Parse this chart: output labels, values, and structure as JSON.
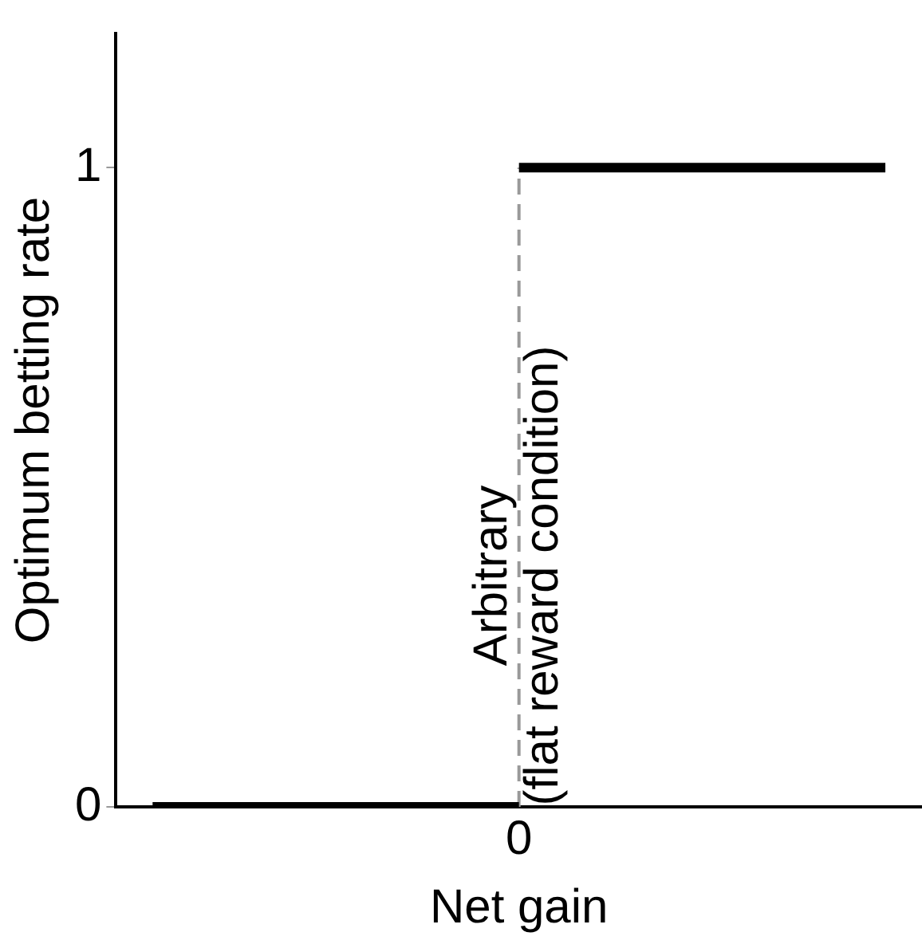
{
  "chart_data": {
    "type": "line",
    "xlabel": "Net gain",
    "ylabel": "Optimum betting rate",
    "categories": [
      null,
      null,
      null,
      null,
      null,
      "0",
      null,
      null,
      null,
      null,
      null
    ],
    "series": [
      {
        "color": "#000000",
        "values": [
          0,
          0,
          0,
          0,
          0,
          0,
          null,
          null,
          null,
          null,
          null
        ]
      },
      {
        "color": "#000000",
        "values": [
          null,
          null,
          null,
          null,
          null,
          1,
          1,
          1,
          1,
          1,
          1
        ]
      }
    ],
    "ylim": [
      0,
      1.21
    ],
    "yticks": [
      0,
      1
    ],
    "ref_lines": [
      {
        "axis": "x",
        "value": "0",
        "color": "#999999",
        "line_style": "dashed"
      }
    ],
    "annotations": [
      "Arbitrary\n(flat reward condition)"
    ],
    "grid": false,
    "legend": false,
    "marker": "none",
    "line_style": "solid"
  }
}
